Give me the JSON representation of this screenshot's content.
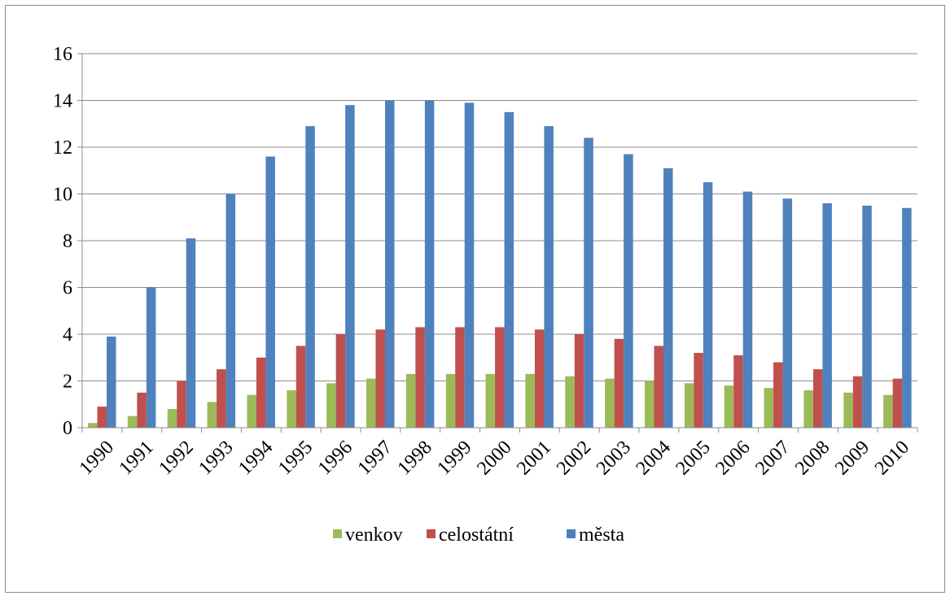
{
  "chart_data": {
    "type": "bar",
    "title": "",
    "xlabel": "",
    "ylabel": "",
    "ylim": [
      0,
      16
    ],
    "yticks": [
      0,
      2,
      4,
      6,
      8,
      10,
      12,
      14,
      16
    ],
    "grid": true,
    "legend_position": "bottom",
    "categories": [
      "1990",
      "1991",
      "1992",
      "1993",
      "1994",
      "1995",
      "1996",
      "1997",
      "1998",
      "1999",
      "2000",
      "2001",
      "2002",
      "2003",
      "2004",
      "2005",
      "2006",
      "2007",
      "2008",
      "2009",
      "2010"
    ],
    "series": [
      {
        "name": "venkov",
        "color": "#9bbb59",
        "values": [
          0.2,
          0.5,
          0.8,
          1.1,
          1.4,
          1.6,
          1.9,
          2.1,
          2.3,
          2.3,
          2.3,
          2.3,
          2.2,
          2.1,
          2.0,
          1.9,
          1.8,
          1.7,
          1.6,
          1.5,
          1.4
        ]
      },
      {
        "name": "celostátní",
        "color": "#c0504d",
        "values": [
          0.9,
          1.5,
          2.0,
          2.5,
          3.0,
          3.5,
          4.0,
          4.2,
          4.3,
          4.3,
          4.3,
          4.2,
          4.0,
          3.8,
          3.5,
          3.2,
          3.1,
          2.8,
          2.5,
          2.2,
          2.1
        ]
      },
      {
        "name": "města",
        "color": "#4f81bd",
        "values": [
          3.9,
          6.0,
          8.1,
          10.0,
          11.6,
          12.9,
          13.8,
          14.0,
          14.0,
          13.9,
          13.5,
          12.9,
          12.4,
          11.7,
          11.1,
          10.5,
          10.1,
          9.8,
          9.6,
          9.5,
          9.4
        ]
      }
    ]
  }
}
